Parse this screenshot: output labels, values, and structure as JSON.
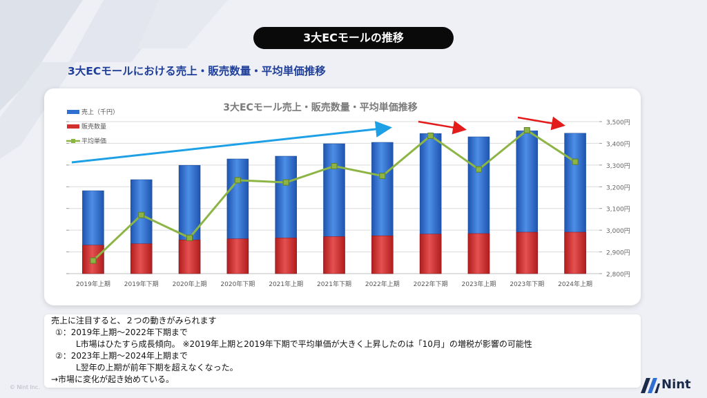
{
  "page": {
    "title": "3大ECモールの推移",
    "subtitle": "3大ECモールにおける売上・販売数量・平均単価推移",
    "copyright": "© Nint Inc.",
    "brand": "Nint"
  },
  "chart_data": {
    "type": "bar",
    "title": "3大ECモール売上・販売数量・平均単価推移",
    "categories": [
      "2019年上期",
      "2019年下期",
      "2020年上期",
      "2020年下期",
      "2021年上期",
      "2021年下期",
      "2022年上期",
      "2022年下期",
      "2023年上期",
      "2023年下期",
      "2024年上期"
    ],
    "series": [
      {
        "name": "売上（千円）",
        "kind": "bar",
        "axis": "left",
        "values": [
          300,
          340,
          392,
          415,
          425,
          470,
          475,
          507,
          495,
          517,
          508
        ],
        "color": "#2f6fd1"
      },
      {
        "name": "販売数量",
        "kind": "bar",
        "axis": "left",
        "values": [
          103,
          108,
          122,
          126,
          129,
          134,
          137,
          143,
          145,
          150,
          150
        ],
        "color": "#d32f2f"
      },
      {
        "name": "平均単価",
        "kind": "line",
        "axis": "right",
        "values": [
          2860,
          3070,
          2965,
          3230,
          3220,
          3295,
          3250,
          3435,
          3280,
          3460,
          3315
        ],
        "color": "#8db546"
      }
    ],
    "y2_ticks": [
      "3,500円",
      "3,400円",
      "3,300円",
      "3,200円",
      "3,100円",
      "3,000円",
      "2,900円",
      "2,800円"
    ],
    "y2lim": [
      2800,
      3500
    ],
    "ylim": [
      0,
      550
    ],
    "grid": true,
    "legend": "top-left",
    "colors": {
      "blue_arrow": "#1ea0e6",
      "red_arrow": "#e31b1b"
    }
  },
  "notes": {
    "line1": "売上に注目すると、２つの動きがみられます",
    "line2": "①：2019年上期～2022年下期まで",
    "line3": "L市場はひたすら成長傾向。 ※2019年上期と2019年下期で平均単価が大きく上昇したのは「10月」の増税が影響の可能性",
    "line4": "②：2023年上期～2024年上期まで",
    "line5": "L翌年の上期が前年下期を超えなくなった。",
    "line6": "→市場に変化が起き始めている。"
  }
}
